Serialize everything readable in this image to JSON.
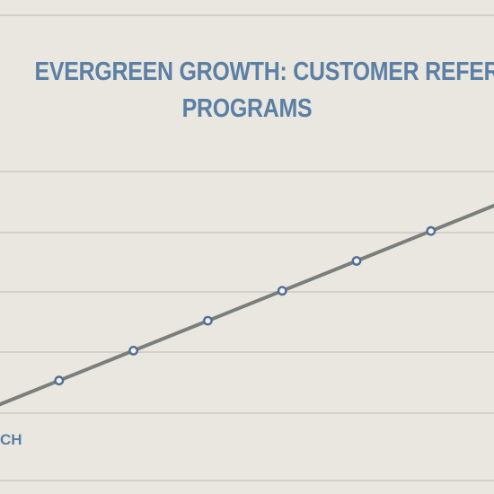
{
  "chart_data": {
    "type": "line",
    "title_lines": [
      "EVERGREEN GROWTH: CUSTOMER REFERRAL",
      "PROGRAMS"
    ],
    "x_tick_labels": [
      {
        "x": 0,
        "text": "CH"
      }
    ],
    "grid": true,
    "colors": {
      "background": "#e9e7df",
      "grid": "#c4c3bc",
      "line": "#7b7f7c",
      "marker_stroke": "#4f6f96",
      "marker_fill": "#f2f1ec",
      "title": "#5b7fa5"
    },
    "series": [
      {
        "values": [
          {
            "x": 0,
            "y": 0
          },
          {
            "x": 1,
            "y": 1
          },
          {
            "x": 2,
            "y": 2
          },
          {
            "x": 3,
            "y": 3
          },
          {
            "x": 4,
            "y": 4
          },
          {
            "x": 5,
            "y": 5
          },
          {
            "x": 6,
            "y": 6
          },
          {
            "x": 7,
            "y": 7
          }
        ],
        "marked_points": [
          1,
          2,
          3,
          4,
          5,
          6
        ]
      }
    ]
  }
}
